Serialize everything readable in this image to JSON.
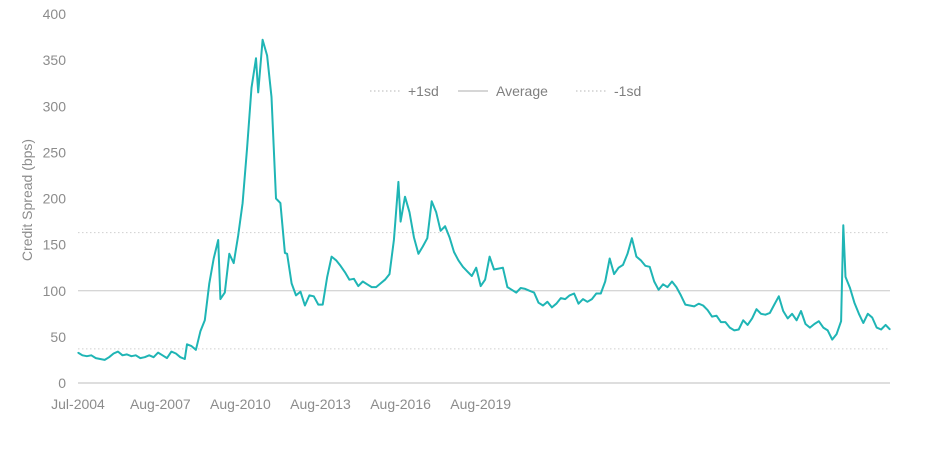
{
  "chart_data": {
    "type": "line",
    "title": "",
    "xlabel": "",
    "ylabel": "Credit Spread (bps)",
    "ylim": [
      0,
      400
    ],
    "yticks": [
      0,
      50,
      100,
      150,
      200,
      250,
      300,
      350,
      400
    ],
    "x_tick_labels": [
      "Jul-2004",
      "Aug-2007",
      "Aug-2010",
      "Aug-2013",
      "Aug-2016",
      "Aug-2019"
    ],
    "grid": false,
    "legend_position": "top-center",
    "reference_lines": [
      {
        "name": "+1sd",
        "value": 163,
        "style": "dotted",
        "color": "#cfcfcf"
      },
      {
        "name": "Average",
        "value": 100,
        "style": "solid",
        "color": "#c8c8c8"
      },
      {
        "name": "-1sd",
        "value": 37,
        "style": "dotted",
        "color": "#cfcfcf"
      }
    ],
    "series": [
      {
        "color": "#1fb5b5",
        "points": [
          [
            "Jul-2004",
            33
          ],
          [
            "Sep-2004",
            30
          ],
          [
            "Nov-2004",
            29
          ],
          [
            "Jan-2005",
            30
          ],
          [
            "Mar-2005",
            27
          ],
          [
            "May-2005",
            26
          ],
          [
            "Jul-2005",
            25
          ],
          [
            "Sep-2005",
            28
          ],
          [
            "Nov-2005",
            32
          ],
          [
            "Jan-2006",
            34
          ],
          [
            "Mar-2006",
            30
          ],
          [
            "May-2006",
            31
          ],
          [
            "Jul-2006",
            29
          ],
          [
            "Sep-2006",
            30
          ],
          [
            "Nov-2006",
            27
          ],
          [
            "Jan-2007",
            28
          ],
          [
            "Mar-2007",
            30
          ],
          [
            "May-2007",
            28
          ],
          [
            "Jul-2007",
            33
          ],
          [
            "Sep-2007",
            30
          ],
          [
            "Nov-2007",
            27
          ],
          [
            "Jan-2008",
            34
          ],
          [
            "Mar-2008",
            32
          ],
          [
            "May-2008",
            28
          ],
          [
            "Jul-2008",
            26
          ],
          [
            "Aug-2008",
            42
          ],
          [
            "Oct-2008",
            40
          ],
          [
            "Dec-2008",
            36
          ],
          [
            "Feb-2009",
            56
          ],
          [
            "Apr-2009",
            68
          ],
          [
            "Jun-2009",
            108
          ],
          [
            "Aug-2009",
            135
          ],
          [
            "Oct-2009",
            155
          ],
          [
            "Nov-2009",
            91
          ],
          [
            "Jan-2010",
            98
          ],
          [
            "Mar-2010",
            140
          ],
          [
            "May-2010",
            130
          ],
          [
            "Jul-2010",
            160
          ],
          [
            "Sep-2010",
            195
          ],
          [
            "Nov-2010",
            255
          ],
          [
            "Jan-2011",
            320
          ],
          [
            "Mar-2011",
            352
          ],
          [
            "Apr-2011",
            315
          ],
          [
            "Jun-2011",
            372
          ],
          [
            "Aug-2011",
            355
          ],
          [
            "Oct-2011",
            310
          ],
          [
            "Dec-2011",
            200
          ],
          [
            "Feb-2012",
            195
          ],
          [
            "Apr-2012",
            141
          ],
          [
            "May-2012",
            140
          ],
          [
            "Jul-2012",
            108
          ],
          [
            "Sep-2012",
            95
          ],
          [
            "Nov-2012",
            99
          ],
          [
            "Jan-2013",
            84
          ],
          [
            "Mar-2013",
            95
          ],
          [
            "May-2013",
            94
          ],
          [
            "Jul-2013",
            85
          ],
          [
            "Sep-2013",
            85
          ],
          [
            "Nov-2013",
            115
          ],
          [
            "Jan-2014",
            137
          ],
          [
            "Mar-2014",
            133
          ],
          [
            "May-2014",
            127
          ],
          [
            "Jul-2014",
            120
          ],
          [
            "Sep-2014",
            112
          ],
          [
            "Nov-2014",
            113
          ],
          [
            "Jan-2015",
            105
          ],
          [
            "Mar-2015",
            110
          ],
          [
            "May-2015",
            107
          ],
          [
            "Jul-2015",
            104
          ],
          [
            "Sep-2015",
            104
          ],
          [
            "Nov-2015",
            108
          ],
          [
            "Jan-2016",
            112
          ],
          [
            "Mar-2016",
            118
          ],
          [
            "May-2016",
            155
          ],
          [
            "Jul-2016",
            218
          ],
          [
            "Aug-2016",
            175
          ],
          [
            "Oct-2016",
            202
          ],
          [
            "Dec-2016",
            185
          ],
          [
            "Feb-2017",
            158
          ],
          [
            "Apr-2017",
            140
          ],
          [
            "Jun-2017",
            148
          ],
          [
            "Aug-2017",
            157
          ],
          [
            "Oct-2017",
            197
          ],
          [
            "Dec-2017",
            185
          ],
          [
            "Feb-2018",
            165
          ],
          [
            "Apr-2018",
            170
          ],
          [
            "Jun-2018",
            158
          ],
          [
            "Aug-2018",
            142
          ],
          [
            "Oct-2018",
            133
          ],
          [
            "Dec-2018",
            126
          ],
          [
            "Feb-2019",
            121
          ],
          [
            "Apr-2019",
            116
          ],
          [
            "Jun-2019",
            125
          ],
          [
            "Aug-2019",
            105
          ],
          [
            "Oct-2019",
            112
          ],
          [
            "Dec-2019",
            137
          ],
          [
            "Feb-2020",
            123
          ],
          [
            "Apr-2020",
            124
          ],
          [
            "Jun-2020",
            125
          ],
          [
            "Aug-2020",
            104
          ],
          [
            "Oct-2020",
            101
          ],
          [
            "Dec-2020",
            98
          ],
          [
            "Feb-2021",
            103
          ],
          [
            "Apr-2021",
            102
          ],
          [
            "Jun-2021",
            100
          ],
          [
            "Aug-2021",
            98
          ],
          [
            "Oct-2021",
            87
          ],
          [
            "Dec-2021",
            84
          ],
          [
            "Feb-2022",
            88
          ],
          [
            "Apr-2022",
            82
          ],
          [
            "Jun-2022",
            86
          ],
          [
            "Aug-2022",
            92
          ],
          [
            "Oct-2022",
            91
          ],
          [
            "Dec-2022",
            95
          ],
          [
            "Feb-2023",
            97
          ],
          [
            "Apr-2023",
            86
          ],
          [
            "Jun-2023",
            91
          ],
          [
            "Aug-2023",
            88
          ],
          [
            "Oct-2023",
            91
          ],
          [
            "Dec-2023",
            97
          ],
          [
            "Feb-2024",
            97
          ],
          [
            "Apr-2024",
            110
          ],
          [
            "Jun-2024",
            135
          ],
          [
            "Aug-2024",
            118
          ],
          [
            "Oct-2024",
            125
          ],
          [
            "Dec-2024",
            128
          ],
          [
            "Feb-2025",
            140
          ],
          [
            "Apr-2025",
            157
          ],
          [
            "Jun-2025",
            137
          ],
          [
            "Aug-2025",
            133
          ],
          [
            "Oct-2025",
            127
          ],
          [
            "Dec-2025",
            126
          ],
          [
            "Feb-2026",
            110
          ],
          [
            "Apr-2026",
            101
          ],
          [
            "Jun-2026",
            107
          ],
          [
            "Aug-2026",
            104
          ],
          [
            "Oct-2026",
            110
          ],
          [
            "Dec-2026",
            104
          ],
          [
            "Feb-2027",
            95
          ],
          [
            "Apr-2027",
            85
          ],
          [
            "Jun-2027",
            84
          ],
          [
            "Aug-2027",
            83
          ],
          [
            "Oct-2027",
            86
          ],
          [
            "Dec-2027",
            84
          ],
          [
            "Feb-2028",
            79
          ],
          [
            "Apr-2028",
            72
          ],
          [
            "Jun-2028",
            73
          ],
          [
            "Aug-2028",
            66
          ],
          [
            "Oct-2028",
            66
          ],
          [
            "Dec-2028",
            60
          ],
          [
            "Feb-2029",
            57
          ],
          [
            "Apr-2029",
            58
          ],
          [
            "Jun-2029",
            68
          ],
          [
            "Aug-2029",
            63
          ],
          [
            "Oct-2029",
            70
          ],
          [
            "Dec-2029",
            80
          ],
          [
            "Feb-2030",
            75
          ],
          [
            "Apr-2030",
            74
          ],
          [
            "Jun-2030",
            76
          ],
          [
            "Aug-2030",
            85
          ],
          [
            "Oct-2030",
            94
          ],
          [
            "Dec-2030",
            78
          ],
          [
            "Feb-2031",
            70
          ],
          [
            "Apr-2031",
            75
          ],
          [
            "Jun-2031",
            68
          ],
          [
            "Aug-2031",
            78
          ],
          [
            "Oct-2031",
            64
          ],
          [
            "Dec-2031",
            60
          ],
          [
            "Feb-2032",
            64
          ],
          [
            "Apr-2032",
            67
          ],
          [
            "Jun-2032",
            60
          ],
          [
            "Aug-2032",
            57
          ],
          [
            "Oct-2032",
            47
          ],
          [
            "Dec-2032",
            53
          ],
          [
            "Feb-2033",
            67
          ],
          [
            "Mar-2033",
            171
          ],
          [
            "Apr-2033",
            115
          ],
          [
            "Jun-2033",
            103
          ],
          [
            "Aug-2033",
            87
          ],
          [
            "Oct-2033",
            75
          ],
          [
            "Dec-2033",
            65
          ],
          [
            "Feb-2034",
            75
          ],
          [
            "Apr-2034",
            71
          ],
          [
            "Jun-2034",
            60
          ],
          [
            "Aug-2034",
            58
          ],
          [
            "Oct-2034",
            63
          ],
          [
            "Dec-2034",
            58
          ]
        ]
      }
    ]
  }
}
